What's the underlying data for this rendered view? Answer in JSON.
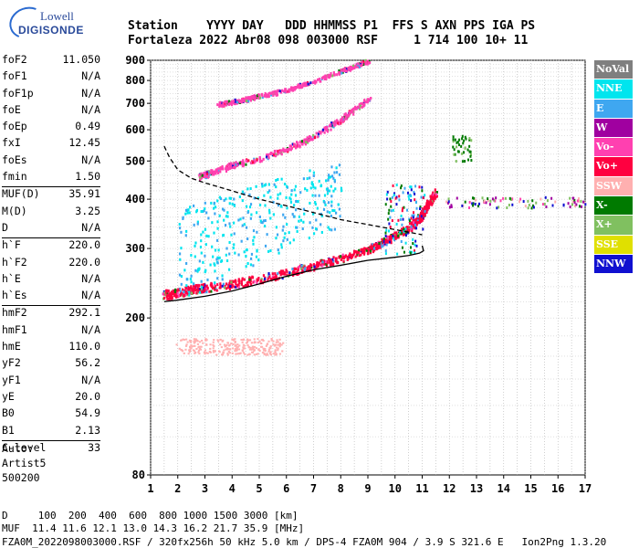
{
  "logo": {
    "line1": "Lowell",
    "line2": "DIGISONDE"
  },
  "header": {
    "row1": "Station    YYYY DAY   DDD HHMMSS P1  FFS S AXN PPS IGA PS",
    "row2": "Fortaleza 2022 Abr08 098 003000 RSF     1 714 100 10+ 11"
  },
  "params": [
    {
      "name": "foF2",
      "value": "11.050"
    },
    {
      "name": "foF1",
      "value": "N/A"
    },
    {
      "name": "foF1p",
      "value": "N/A"
    },
    {
      "name": "foE",
      "value": "N/A"
    },
    {
      "name": "foEp",
      "value": "0.49"
    },
    {
      "name": "fxI",
      "value": "12.45"
    },
    {
      "name": "foEs",
      "value": "N/A"
    },
    {
      "name": "fmin",
      "value": "1.50",
      "div": false
    },
    {
      "name": "MUF(D)",
      "value": "35.91",
      "div": true
    },
    {
      "name": "M(D)",
      "value": "3.25"
    },
    {
      "name": "D",
      "value": "N/A"
    },
    {
      "name": "h`F",
      "value": "220.0",
      "div": true
    },
    {
      "name": "h`F2",
      "value": "220.0"
    },
    {
      "name": "h`E",
      "value": "N/A"
    },
    {
      "name": "h`Es",
      "value": "N/A"
    },
    {
      "name": "hmF2",
      "value": "292.1",
      "div": true
    },
    {
      "name": "hmF1",
      "value": "N/A"
    },
    {
      "name": "hmE",
      "value": "110.0"
    },
    {
      "name": "yF2",
      "value": "56.2"
    },
    {
      "name": "yF1",
      "value": "N/A"
    },
    {
      "name": "yE",
      "value": "20.0"
    },
    {
      "name": "B0",
      "value": "54.9"
    },
    {
      "name": "B1",
      "value": "2.13"
    },
    {
      "name": "C-level",
      "value": "33",
      "div": true
    }
  ],
  "auto": [
    "Auto:",
    "Artist5",
    "500200"
  ],
  "legend": [
    {
      "label": "NoVal",
      "color": "#7f7f7f"
    },
    {
      "label": "NNE",
      "color": "#00e5ee"
    },
    {
      "label": "E",
      "color": "#3fa7f0"
    },
    {
      "label": "W",
      "color": "#a000a0"
    },
    {
      "label": "Vo-",
      "color": "#ff40b0"
    },
    {
      "label": "Vo+",
      "color": "#ff0040"
    },
    {
      "label": "SSW",
      "color": "#ffb0b0"
    },
    {
      "label": "X-",
      "color": "#007a00"
    },
    {
      "label": "X+",
      "color": "#80c060"
    },
    {
      "label": "SSE",
      "color": "#e0e000"
    },
    {
      "label": "NNW",
      "color": "#1010d0"
    }
  ],
  "footer": {
    "line1": "D     100  200  400  600  800 1000 1500 3000 [km]",
    "line2": "MUF  11.4 11.6 12.1 13.0 14.3 16.2 21.7 35.9 [MHz]",
    "line3": "FZA0M_2022098003000.RSF / 320fx256h 50 kHz 5.0 km / DPS-4 FZA0M 904 / 3.9 S 321.6 E   Ion2Png 1.3.20"
  },
  "chart_data": {
    "type": "scatter",
    "x_ticks": [
      "1",
      "2",
      "3",
      "4",
      "5",
      "6",
      "7",
      "8",
      "9",
      "10",
      "11",
      "12",
      "13",
      "14",
      "15",
      "16",
      "17"
    ],
    "y_ticks": [
      "80",
      "200",
      "300",
      "400",
      "500",
      "600",
      "700",
      "800",
      "900"
    ],
    "xlim": [
      1,
      17
    ],
    "ylim": [
      80,
      900
    ],
    "y_scale": "log",
    "grid": true,
    "legend_position": "right",
    "traces": [
      {
        "mode": "O",
        "color_key": "Vo+",
        "x": [
          1.5,
          2,
          2.5,
          3,
          4,
          5,
          6,
          7,
          8,
          9,
          9.5,
          10,
          10.5,
          10.8,
          11,
          11.2,
          11.5
        ],
        "y": [
          230,
          233,
          238,
          240,
          245,
          252,
          262,
          273,
          285,
          300,
          312,
          325,
          340,
          355,
          370,
          390,
          420
        ]
      },
      {
        "mode": "O2",
        "color_key": "Vo-",
        "x": [
          2.8,
          3.2,
          4,
          5,
          6,
          7,
          8,
          8.5,
          9
        ],
        "y": [
          460,
          470,
          490,
          510,
          540,
          580,
          640,
          680,
          720
        ]
      },
      {
        "mode": "O3",
        "color_key": "Vo-",
        "x": [
          3.5,
          4,
          4.5,
          5,
          6,
          7,
          8,
          8.5,
          9
        ],
        "y": [
          700,
          710,
          720,
          735,
          760,
          800,
          850,
          875,
          900
        ]
      },
      {
        "mode": "Es",
        "color_key": "SSW",
        "x": [
          2,
          3,
          4,
          5,
          5.8
        ],
        "y": [
          170,
          170,
          170,
          170,
          170
        ]
      },
      {
        "mode": "Oblique",
        "color_key": "NNE",
        "x": [
          2,
          3,
          4,
          5,
          6,
          7,
          8
        ],
        "y": [
          300,
          320,
          340,
          360,
          380,
          400,
          420
        ]
      }
    ],
    "profile_solid": {
      "x": [
        1.5,
        2,
        3,
        4,
        5,
        6,
        7,
        8,
        9,
        10,
        10.5,
        10.9,
        11.05,
        11
      ],
      "y": [
        220,
        222,
        227,
        234,
        244,
        255,
        265,
        272,
        280,
        285,
        288,
        292,
        296,
        305
      ]
    },
    "profile_dashed": {
      "x": [
        1.5,
        1.7,
        2,
        2.5,
        3,
        4,
        5,
        6,
        7,
        8,
        9,
        10,
        10.5,
        11
      ],
      "y": [
        545,
        510,
        475,
        452,
        440,
        420,
        400,
        385,
        370,
        355,
        345,
        335,
        330,
        325
      ]
    }
  }
}
